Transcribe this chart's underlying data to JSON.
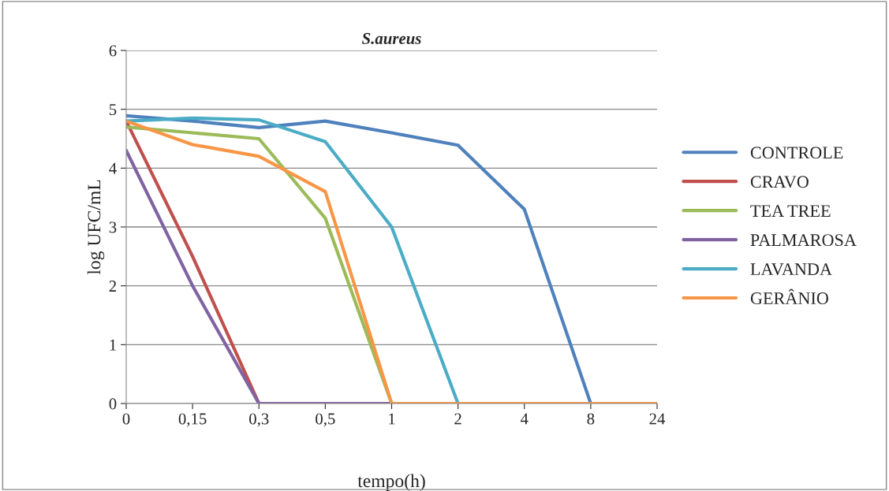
{
  "chart_data": {
    "type": "line",
    "title": "S.aureus",
    "xlabel": "tempo(h)",
    "ylabel": "log UFC/mL",
    "categories": [
      "0",
      "0,15",
      "0,3",
      "0,5",
      "1",
      "2",
      "4",
      "8",
      "24"
    ],
    "ylim": [
      0,
      6
    ],
    "yticks": [
      0,
      1,
      2,
      3,
      4,
      5,
      6
    ],
    "grid": "y",
    "legend": "right",
    "marker": "none",
    "line_style": "solid",
    "series": [
      {
        "name": "CONTROLE",
        "color": "#4f81bd",
        "values": [
          4.89,
          4.8,
          4.69,
          4.8,
          4.6,
          4.39,
          3.3,
          0,
          null
        ]
      },
      {
        "name": "CRAVO",
        "color": "#c0504d",
        "values": [
          4.8,
          2.5,
          0,
          null,
          null,
          null,
          null,
          null,
          null
        ]
      },
      {
        "name": "TEA TREE",
        "color": "#9bbb59",
        "values": [
          4.7,
          4.6,
          4.5,
          3.15,
          0,
          null,
          null,
          null,
          null
        ]
      },
      {
        "name": "PALMAROSA",
        "color": "#8064a2",
        "values": [
          4.3,
          2.0,
          0,
          0,
          0,
          null,
          null,
          null,
          null
        ]
      },
      {
        "name": "LAVANDA",
        "color": "#4bacc6",
        "values": [
          4.8,
          4.85,
          4.82,
          4.45,
          3.0,
          0,
          null,
          null,
          null
        ]
      },
      {
        "name": "GERÂNIO",
        "color": "#f79646",
        "values": [
          4.8,
          4.4,
          4.2,
          3.6,
          0,
          0,
          0,
          0,
          0
        ]
      }
    ]
  }
}
